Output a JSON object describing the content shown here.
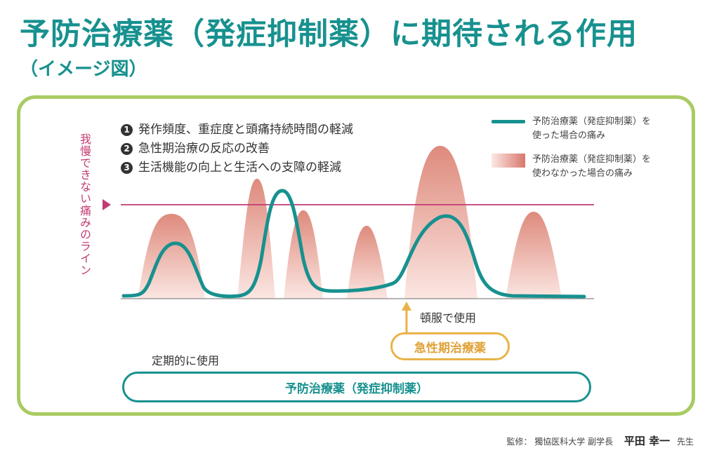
{
  "title": "予防治療薬（発症抑制薬）に期待される作用",
  "subtitle": "（イメージ図）",
  "effects": [
    {
      "num": "1",
      "text": "発作頻度、重症度と頭痛持続時間の軽減"
    },
    {
      "num": "2",
      "text": "急性期治療の反応の改善"
    },
    {
      "num": "3",
      "text": "生活機能の向上と生活への支障の軽減"
    }
  ],
  "y_label": "我慢できない痛みのライン",
  "legend": {
    "with_line1": "予防治療薬（発症抑制薬）を",
    "with_line2": "使った場合の痛み",
    "without_line1": "予防治療薬（発症抑制薬）を",
    "without_line2": "使わなかった場合の痛み"
  },
  "annotations": {
    "tonpuku": "頓服で使用",
    "acute_drug": "急性期治療薬",
    "regular_use": "定期的に使用",
    "preventive_drug": "予防治療薬（発症抑制薬）"
  },
  "credit": {
    "role": "監修： 獨協医科大学 副学長",
    "name": "平田 幸一",
    "suffix": "先生"
  },
  "colors": {
    "teal": "#17918f",
    "pink_line": "#c23a74",
    "salmon": "#d9786c",
    "green_frame": "#a9cb62",
    "gold": "#eab348"
  }
}
